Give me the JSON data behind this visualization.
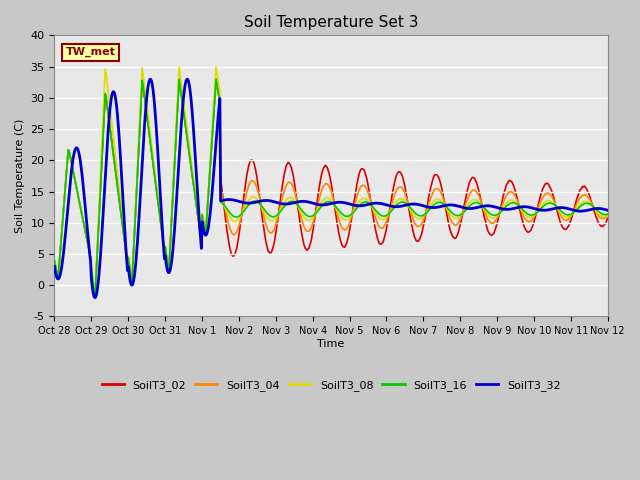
{
  "title": "Soil Temperature Set 3",
  "ylabel": "Soil Temperature (C)",
  "xlabel": "Time",
  "ylim": [
    -5,
    40
  ],
  "fig_bg": "#c8c8c8",
  "plot_bg": "#e8e8e8",
  "annotation_text": "TW_met",
  "annotation_color": "#8b0000",
  "annotation_bg": "#ffffaa",
  "series": {
    "SoilT3_02": {
      "color": "#dd0000",
      "lw": 1.2
    },
    "SoilT3_04": {
      "color": "#ff8800",
      "lw": 1.2
    },
    "SoilT3_08": {
      "color": "#dddd00",
      "lw": 1.2
    },
    "SoilT3_16": {
      "color": "#00cc00",
      "lw": 1.2
    },
    "SoilT3_32": {
      "color": "#0000cc",
      "lw": 2.0
    }
  },
  "tick_labels": [
    "Oct 28",
    "Oct 29",
    "Oct 30",
    "Oct 31",
    "Nov 1",
    "Nov 2",
    "Nov 3",
    "Nov 4",
    "Nov 5",
    "Nov 6",
    "Nov 7",
    "Nov 8",
    "Nov 9",
    "Nov 10",
    "Nov 11",
    "Nov 12"
  ],
  "yticks": [
    -5,
    0,
    5,
    10,
    15,
    20,
    25,
    30,
    35,
    40
  ]
}
